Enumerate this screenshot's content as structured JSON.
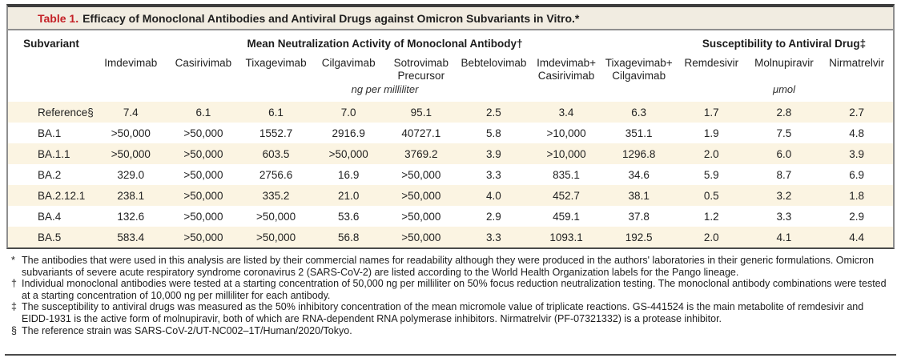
{
  "title": {
    "label": "Table 1.",
    "text": "Efficacy of Monoclonal Antibodies and Antiviral Drugs against Omicron Subvariants in Vitro.*"
  },
  "table": {
    "row_header": "Subvariant",
    "groups": [
      {
        "label": "Mean Neutralization Activity of Monoclonal Antibody†"
      },
      {
        "label": "Susceptibility to Antiviral Drug‡"
      }
    ],
    "columns": [
      "Imdevimab",
      "Casirivimab",
      "Tixagevimab",
      "Cilgavimab",
      "Sotrovimab\nPrecursor",
      "Bebtelovimab",
      "Imdevimab+\nCasirivimab",
      "Tixagevimab+\nCilgavimab",
      "Remdesivir",
      "Molnupiravir",
      "Nirmatrelvir"
    ],
    "units": [
      {
        "label": "ng per milliliter"
      },
      {
        "label": "μmol"
      }
    ],
    "rows": [
      {
        "label": "Reference§",
        "values": [
          "7.4",
          "6.1",
          "6.1",
          "7.0",
          "95.1",
          "2.5",
          "3.4",
          "6.3",
          "1.7",
          "2.8",
          "2.7"
        ]
      },
      {
        "label": "BA.1",
        "values": [
          ">50,000",
          ">50,000",
          "1552.7",
          "2916.9",
          "40727.1",
          "5.8",
          ">10,000",
          "351.1",
          "1.9",
          "7.5",
          "4.8"
        ]
      },
      {
        "label": "BA.1.1",
        "values": [
          ">50,000",
          ">50,000",
          "603.5",
          ">50,000",
          "3769.2",
          "3.9",
          ">10,000",
          "1296.8",
          "2.0",
          "6.0",
          "3.9"
        ]
      },
      {
        "label": "BA.2",
        "values": [
          "329.0",
          ">50,000",
          "2756.6",
          "16.9",
          ">50,000",
          "3.3",
          "835.1",
          "34.6",
          "5.9",
          "8.7",
          "6.9"
        ]
      },
      {
        "label": "BA.2.12.1",
        "values": [
          "238.1",
          ">50,000",
          "335.2",
          "21.0",
          ">50,000",
          "4.0",
          "452.7",
          "38.1",
          "0.5",
          "3.2",
          "1.8"
        ]
      },
      {
        "label": "BA.4",
        "values": [
          "132.6",
          ">50,000",
          ">50,000",
          "53.6",
          ">50,000",
          "2.9",
          "459.1",
          "37.8",
          "1.2",
          "3.3",
          "2.9"
        ]
      },
      {
        "label": "BA.5",
        "values": [
          "583.4",
          ">50,000",
          ">50,000",
          "56.8",
          ">50,000",
          "3.3",
          "1093.1",
          "192.5",
          "2.0",
          "4.1",
          "4.4"
        ]
      }
    ]
  },
  "footnotes": [
    {
      "symbol": "*",
      "text": "The antibodies that were used in this analysis are listed by their commercial names for readability although they were produced in the authors' laboratories in their generic formulations. Omicron subvariants of severe acute respiratory syndrome coronavirus 2 (SARS-CoV-2) are listed according to the World Health Organization labels for the Pango lineage."
    },
    {
      "symbol": "†",
      "text": "Individual monoclonal antibodies were tested at a starting concentration of 50,000 ng per milliliter on 50% focus reduction neutralization testing. The monoclonal antibody combinations were tested at a starting concentration of 10,000 ng per milliliter for each antibody."
    },
    {
      "symbol": "‡",
      "text": "The susceptibility to antiviral drugs was measured as the 50% inhibitory concentration of the mean micromole value of triplicate reactions. GS-441524 is the main metabolite of remdesivir and EIDD-1931 is the active form of molnupiravir, both of which are RNA-dependent RNA polymerase inhibitors. Nirmatrelvir (PF-07321332) is a protease inhibitor."
    },
    {
      "symbol": "§",
      "text": "The reference strain was SARS-CoV-2/UT-NC002–1T/Human/2020/Tokyo."
    }
  ],
  "colors": {
    "accent_red": "#c42127",
    "stripe": "#fbf4e2",
    "title_bar_bg": "#f1ece1"
  }
}
